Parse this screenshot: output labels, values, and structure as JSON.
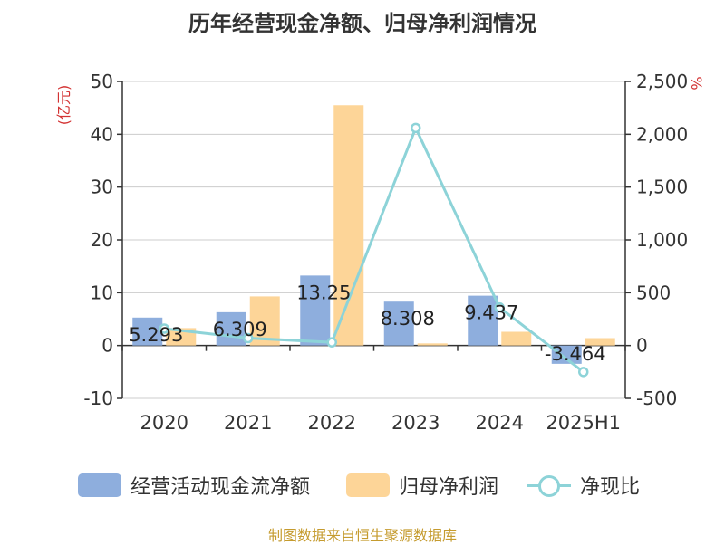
{
  "title": "历年经营现金净额、归母净利润情况",
  "source": "制图数据来自恒生聚源数据库",
  "chart_data": {
    "type": "bar",
    "categories": [
      "2020",
      "2021",
      "2022",
      "2023",
      "2024",
      "2025H1"
    ],
    "y_left": {
      "label": "(亿元)",
      "min": -10,
      "max": 50,
      "ticks": [
        -10,
        0,
        10,
        20,
        30,
        40,
        50
      ]
    },
    "y_right": {
      "label": "%",
      "min": -500,
      "max": 2500,
      "ticks": [
        -500,
        0,
        500,
        1000,
        1500,
        2000,
        2500
      ]
    },
    "series": [
      {
        "name": "经营活动现金流净额",
        "kind": "bar",
        "axis": "left",
        "color": "#8eaedd",
        "values": [
          5.293,
          6.309,
          13.25,
          8.308,
          9.437,
          -3.464
        ],
        "labels": [
          "5.293",
          "6.309",
          "13.25",
          "8.308",
          "9.437",
          "-3.464"
        ]
      },
      {
        "name": "归母净利润",
        "kind": "bar",
        "axis": "left",
        "color": "#fdd598",
        "values": [
          3.3,
          9.3,
          45.5,
          0.4,
          2.6,
          1.4
        ]
      },
      {
        "name": "净现比",
        "kind": "line",
        "axis": "right",
        "color": "#8dd3d8",
        "values": [
          160,
          70,
          30,
          2060,
          360,
          -250
        ]
      }
    ],
    "grid": true,
    "legend_position": "bottom"
  }
}
